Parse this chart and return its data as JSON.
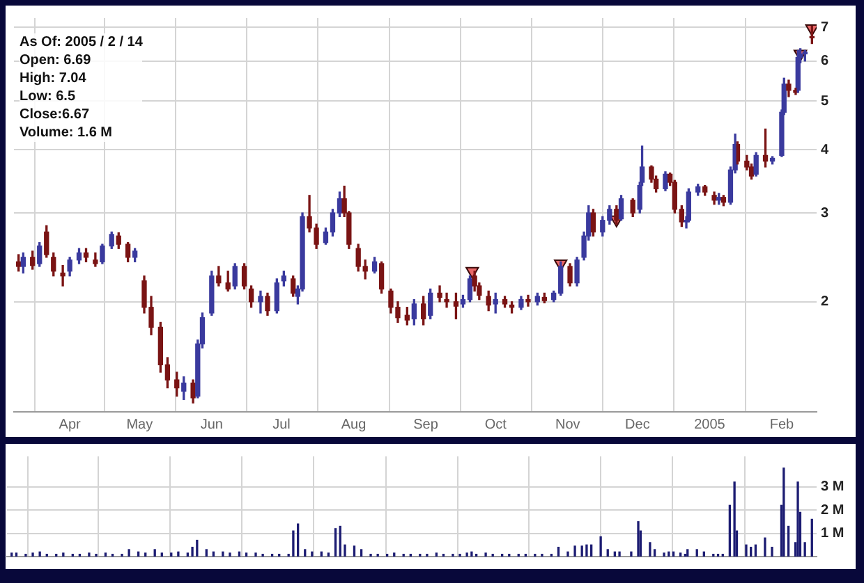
{
  "chart_data": [
    {
      "type": "candlestick",
      "log": true,
      "grid": true,
      "ylim": [
        1.21,
        7.3
      ],
      "yticks": [
        2,
        3,
        4,
        5,
        6,
        7
      ],
      "xlim": [
        "2004-03-08",
        "2005-02-16"
      ],
      "xticks": [
        {
          "value": "2004-04-01",
          "label": "Apr"
        },
        {
          "value": "2004-05-01",
          "label": "May"
        },
        {
          "value": "2004-06-01",
          "label": "Jun"
        },
        {
          "value": "2004-07-01",
          "label": "Jul"
        },
        {
          "value": "2004-08-01",
          "label": "Aug"
        },
        {
          "value": "2004-09-01",
          "label": "Sep"
        },
        {
          "value": "2004-10-01",
          "label": "Oct"
        },
        {
          "value": "2004-11-01",
          "label": "Nov"
        },
        {
          "value": "2004-12-01",
          "label": "Dec"
        },
        {
          "value": "2005-01-01",
          "label": "2005"
        },
        {
          "value": "2005-02-01",
          "label": "Feb"
        }
      ],
      "annotations": [
        "As Of: 2005 / 2 / 14",
        "Open: 6.69",
        "High: 7.04",
        "Low: 6.5",
        "Close:6.67",
        "Volume: 1.6 M"
      ],
      "x": [
        "2004-03-10",
        "2004-03-12",
        "2004-03-16",
        "2004-03-19",
        "2004-03-22",
        "2004-03-25",
        "2004-03-29",
        "2004-04-01",
        "2004-04-05",
        "2004-04-08",
        "2004-04-12",
        "2004-04-15",
        "2004-04-19",
        "2004-04-22",
        "2004-04-26",
        "2004-04-29",
        "2004-05-03",
        "2004-05-06",
        "2004-05-10",
        "2004-05-13",
        "2004-05-17",
        "2004-05-20",
        "2004-05-24",
        "2004-05-26",
        "2004-05-28",
        "2004-06-01",
        "2004-06-04",
        "2004-06-08",
        "2004-06-11",
        "2004-06-15",
        "2004-06-18",
        "2004-06-22",
        "2004-06-25",
        "2004-06-29",
        "2004-07-02",
        "2004-07-06",
        "2004-07-08",
        "2004-07-10",
        "2004-07-13",
        "2004-07-16",
        "2004-07-20",
        "2004-07-23",
        "2004-07-26",
        "2004-07-28",
        "2004-07-30",
        "2004-08-03",
        "2004-08-06",
        "2004-08-10",
        "2004-08-13",
        "2004-08-17",
        "2004-08-20",
        "2004-08-24",
        "2004-08-27",
        "2004-08-31",
        "2004-09-03",
        "2004-09-07",
        "2004-09-10",
        "2004-09-14",
        "2004-09-17",
        "2004-09-20",
        "2004-09-22",
        "2004-09-24",
        "2004-09-28",
        "2004-10-01",
        "2004-10-05",
        "2004-10-08",
        "2004-10-12",
        "2004-10-15",
        "2004-10-19",
        "2004-10-22",
        "2004-10-26",
        "2004-10-29",
        "2004-11-02",
        "2004-11-05",
        "2004-11-08",
        "2004-11-10",
        "2004-11-12",
        "2004-11-16",
        "2004-11-19",
        "2004-11-22",
        "2004-11-24",
        "2004-11-29",
        "2004-12-02",
        "2004-12-03",
        "2004-12-07",
        "2004-12-09",
        "2004-12-13",
        "2004-12-15",
        "2004-12-17",
        "2004-12-20",
        "2004-12-22",
        "2004-12-23",
        "2004-12-27",
        "2004-12-30",
        "2005-01-03",
        "2005-01-05",
        "2005-01-07",
        "2005-01-10",
        "2005-01-12",
        "2005-01-13",
        "2005-01-17",
        "2005-01-19",
        "2005-01-21",
        "2005-01-25",
        "2005-01-28",
        "2005-02-01",
        "2005-02-02",
        "2005-02-04",
        "2005-02-07",
        "2005-02-08",
        "2005-02-09",
        "2005-02-11",
        "2005-02-14"
      ],
      "ohlc": [
        [
          2.4,
          2.48,
          2.3,
          2.35
        ],
        [
          2.35,
          2.5,
          2.28,
          2.45
        ],
        [
          2.45,
          2.52,
          2.32,
          2.36
        ],
        [
          2.38,
          2.62,
          2.35,
          2.58
        ],
        [
          2.75,
          2.83,
          2.45,
          2.48
        ],
        [
          2.45,
          2.5,
          2.25,
          2.3
        ],
        [
          2.28,
          2.36,
          2.15,
          2.25
        ],
        [
          2.3,
          2.45,
          2.25,
          2.42
        ],
        [
          2.42,
          2.55,
          2.38,
          2.5
        ],
        [
          2.5,
          2.55,
          2.4,
          2.45
        ],
        [
          2.42,
          2.5,
          2.35,
          2.38
        ],
        [
          2.4,
          2.6,
          2.38,
          2.58
        ],
        [
          2.58,
          2.75,
          2.55,
          2.72
        ],
        [
          2.7,
          2.74,
          2.55,
          2.6
        ],
        [
          2.6,
          2.62,
          2.4,
          2.45
        ],
        [
          2.45,
          2.55,
          2.4,
          2.52
        ],
        [
          2.2,
          2.25,
          1.9,
          1.95
        ],
        [
          1.95,
          2.05,
          1.72,
          1.78
        ],
        [
          1.78,
          1.82,
          1.45,
          1.5
        ],
        [
          1.5,
          1.55,
          1.35,
          1.4
        ],
        [
          1.4,
          1.45,
          1.3,
          1.35
        ],
        [
          1.33,
          1.42,
          1.28,
          1.38
        ],
        [
          1.38,
          1.4,
          1.26,
          1.29
        ],
        [
          1.3,
          1.68,
          1.29,
          1.65
        ],
        [
          1.65,
          1.9,
          1.62,
          1.86
        ],
        [
          1.9,
          2.3,
          1.88,
          2.25
        ],
        [
          2.25,
          2.35,
          2.15,
          2.18
        ],
        [
          2.18,
          2.3,
          2.1,
          2.12
        ],
        [
          2.15,
          2.38,
          2.12,
          2.35
        ],
        [
          2.35,
          2.38,
          2.12,
          2.15
        ],
        [
          2.12,
          2.15,
          1.95,
          2.0
        ],
        [
          2.0,
          2.1,
          1.9,
          2.05
        ],
        [
          2.05,
          2.08,
          1.88,
          1.92
        ],
        [
          1.92,
          2.22,
          1.9,
          2.18
        ],
        [
          2.2,
          2.3,
          2.15,
          2.25
        ],
        [
          2.22,
          2.25,
          2.05,
          2.08
        ],
        [
          2.05,
          2.15,
          1.98,
          2.12
        ],
        [
          2.12,
          3.0,
          2.1,
          2.95
        ],
        [
          2.95,
          3.25,
          2.75,
          2.8
        ],
        [
          2.8,
          2.85,
          2.55,
          2.6
        ],
        [
          2.62,
          2.8,
          2.6,
          2.75
        ],
        [
          2.75,
          3.05,
          2.7,
          3.0
        ],
        [
          3.0,
          3.3,
          2.95,
          3.2
        ],
        [
          3.2,
          3.39,
          2.95,
          3.0
        ],
        [
          3.0,
          3.02,
          2.55,
          2.6
        ],
        [
          2.55,
          2.6,
          2.3,
          2.35
        ],
        [
          2.35,
          2.42,
          2.22,
          2.3
        ],
        [
          2.3,
          2.45,
          2.28,
          2.4
        ],
        [
          2.38,
          2.4,
          2.08,
          2.12
        ],
        [
          2.1,
          2.12,
          1.9,
          1.95
        ],
        [
          1.95,
          2.0,
          1.82,
          1.86
        ],
        [
          1.88,
          1.95,
          1.8,
          1.84
        ],
        [
          1.85,
          2.02,
          1.8,
          1.98
        ],
        [
          1.98,
          2.05,
          1.8,
          1.85
        ],
        [
          1.88,
          2.12,
          1.85,
          2.08
        ],
        [
          2.08,
          2.15,
          2.0,
          2.04
        ],
        [
          2.02,
          2.08,
          1.95,
          2.0
        ],
        [
          2.0,
          2.08,
          1.85,
          1.96
        ],
        [
          1.98,
          2.06,
          1.95,
          2.02
        ],
        [
          2.02,
          2.25,
          2.0,
          2.22
        ],
        [
          2.25,
          2.3,
          2.1,
          2.15
        ],
        [
          2.15,
          2.18,
          2.02,
          2.06
        ],
        [
          2.05,
          2.1,
          1.92,
          1.97
        ],
        [
          1.98,
          2.08,
          1.9,
          2.02
        ],
        [
          2.02,
          2.05,
          1.95,
          1.98
        ],
        [
          1.97,
          2.0,
          1.9,
          1.95
        ],
        [
          1.95,
          2.05,
          1.93,
          2.02
        ],
        [
          2.02,
          2.06,
          1.96,
          2.0
        ],
        [
          2.0,
          2.08,
          1.97,
          2.05
        ],
        [
          2.04,
          2.08,
          1.99,
          2.01
        ],
        [
          2.02,
          2.1,
          2.0,
          2.08
        ],
        [
          2.08,
          2.4,
          2.06,
          2.35
        ],
        [
          2.35,
          2.38,
          2.15,
          2.18
        ],
        [
          2.18,
          2.45,
          2.15,
          2.42
        ],
        [
          2.45,
          2.75,
          2.42,
          2.7
        ],
        [
          2.7,
          3.1,
          2.65,
          3.0
        ],
        [
          3.0,
          3.05,
          2.7,
          2.75
        ],
        [
          2.75,
          2.95,
          2.7,
          2.9
        ],
        [
          2.9,
          3.1,
          2.85,
          3.05
        ],
        [
          3.05,
          3.1,
          2.85,
          2.9
        ],
        [
          2.92,
          3.25,
          2.9,
          3.2
        ],
        [
          3.18,
          3.2,
          2.95,
          3.0
        ],
        [
          3.05,
          3.45,
          3.0,
          3.4
        ],
        [
          3.45,
          4.07,
          3.4,
          3.7
        ],
        [
          3.7,
          3.72,
          3.45,
          3.5
        ],
        [
          3.5,
          3.55,
          3.3,
          3.35
        ],
        [
          3.35,
          3.62,
          3.32,
          3.58
        ],
        [
          3.58,
          3.6,
          3.4,
          3.45
        ],
        [
          3.45,
          3.48,
          3.0,
          3.05
        ],
        [
          3.05,
          3.1,
          2.82,
          2.88
        ],
        [
          2.88,
          2.95,
          2.8,
          2.9
        ],
        [
          2.9,
          3.35,
          2.88,
          3.3
        ],
        [
          3.3,
          3.42,
          3.25,
          3.38
        ],
        [
          3.38,
          3.4,
          3.25,
          3.3
        ],
        [
          3.25,
          3.3,
          3.12,
          3.18
        ],
        [
          3.18,
          3.28,
          3.12,
          3.22
        ],
        [
          3.22,
          3.25,
          3.1,
          3.15
        ],
        [
          3.15,
          3.7,
          3.12,
          3.65
        ],
        [
          3.65,
          4.3,
          3.6,
          4.1
        ],
        [
          4.1,
          4.15,
          3.75,
          3.8
        ],
        [
          3.8,
          3.9,
          3.65,
          3.7
        ],
        [
          3.7,
          3.75,
          3.5,
          3.55
        ],
        [
          3.58,
          3.95,
          3.55,
          3.9
        ],
        [
          3.9,
          4.4,
          3.7,
          3.8
        ],
        [
          3.8,
          3.88,
          3.75,
          3.85
        ],
        [
          3.9,
          4.8,
          3.88,
          4.75
        ],
        [
          4.75,
          5.55,
          4.7,
          5.4
        ],
        [
          5.4,
          5.5,
          5.1,
          5.25
        ],
        [
          5.25,
          5.3,
          5.15,
          5.2
        ],
        [
          5.25,
          6.3,
          5.2,
          6.1
        ],
        [
          6.1,
          6.35,
          5.95,
          6.2
        ],
        [
          6.2,
          6.3,
          6.0,
          6.25
        ],
        [
          6.69,
          7.04,
          6.5,
          6.67
        ]
      ],
      "colors": [
        "#7a1414",
        "#3a3a9e",
        "#7a1414",
        "#3a3a9e",
        "#7a1414",
        "#7a1414",
        "#7a1414",
        "#3a3a9e",
        "#3a3a9e",
        "#7a1414",
        "#7a1414",
        "#3a3a9e",
        "#3a3a9e",
        "#7a1414",
        "#7a1414",
        "#3a3a9e",
        "#7a1414",
        "#7a1414",
        "#7a1414",
        "#7a1414",
        "#7a1414",
        "#3a3a9e",
        "#7a1414",
        "#3a3a9e",
        "#3a3a9e",
        "#3a3a9e",
        "#7a1414",
        "#7a1414",
        "#3a3a9e",
        "#7a1414",
        "#7a1414",
        "#3a3a9e",
        "#7a1414",
        "#3a3a9e",
        "#3a3a9e",
        "#7a1414",
        "#3a3a9e",
        "#3a3a9e",
        "#7a1414",
        "#7a1414",
        "#3a3a9e",
        "#3a3a9e",
        "#3a3a9e",
        "#7a1414",
        "#7a1414",
        "#7a1414",
        "#7a1414",
        "#3a3a9e",
        "#7a1414",
        "#7a1414",
        "#7a1414",
        "#7a1414",
        "#3a3a9e",
        "#7a1414",
        "#3a3a9e",
        "#7a1414",
        "#7a1414",
        "#7a1414",
        "#3a3a9e",
        "#3a3a9e",
        "#7a1414",
        "#7a1414",
        "#7a1414",
        "#3a3a9e",
        "#7a1414",
        "#7a1414",
        "#3a3a9e",
        "#7a1414",
        "#3a3a9e",
        "#7a1414",
        "#3a3a9e",
        "#3a3a9e",
        "#7a1414",
        "#3a3a9e",
        "#3a3a9e",
        "#3a3a9e",
        "#7a1414",
        "#3a3a9e",
        "#3a3a9e",
        "#7a1414",
        "#3a3a9e",
        "#7a1414",
        "#3a3a9e",
        "#3a3a9e",
        "#7a1414",
        "#7a1414",
        "#3a3a9e",
        "#7a1414",
        "#7a1414",
        "#7a1414",
        "#3a3a9e",
        "#3a3a9e",
        "#3a3a9e",
        "#7a1414",
        "#7a1414",
        "#3a3a9e",
        "#7a1414",
        "#3a3a9e",
        "#3a3a9e",
        "#7a1414",
        "#7a1414",
        "#7a1414",
        "#3a3a9e",
        "#7a1414",
        "#3a3a9e",
        "#3a3a9e",
        "#3a3a9e",
        "#7a1414",
        "#7a1414",
        "#3a3a9e",
        "#3a3a9e",
        "#3a3a9e",
        "#7a1414"
      ],
      "series": [
        {
          "type": "scatter",
          "marker": "triangle",
          "color": "#e86868",
          "x": [
            "2004-09-21",
            "2004-10-29",
            "2004-11-22",
            "2005-02-09",
            "2005-02-14"
          ],
          "values": [
            2.3,
            2.38,
            2.91,
            6.2,
            6.96
          ]
        }
      ]
    },
    {
      "type": "bar",
      "grid": true,
      "tick_labels": "y",
      "color": "#1c1c72",
      "ylim": [
        0,
        4.3
      ],
      "yticks": [
        {
          "value": 1,
          "label": "1 M"
        },
        {
          "value": 2,
          "label": "2 M"
        },
        {
          "value": 3,
          "label": "3 M"
        }
      ],
      "xlim": [
        "2004-03-08",
        "2005-02-16"
      ],
      "xticks": [
        {
          "value": "2004-04-01",
          "label": null
        },
        {
          "value": "2004-05-01",
          "label": null
        },
        {
          "value": "2004-06-01",
          "label": null
        },
        {
          "value": "2004-07-01",
          "label": null
        },
        {
          "value": "2004-08-01",
          "label": null
        },
        {
          "value": "2004-09-01",
          "label": null
        },
        {
          "value": "2004-10-01",
          "label": null
        },
        {
          "value": "2004-11-01",
          "label": null
        },
        {
          "value": "2004-12-01",
          "label": null
        },
        {
          "value": "2005-01-01",
          "label": null
        },
        {
          "value": "2005-02-01",
          "label": null
        }
      ],
      "x": [
        "2004-03-10",
        "2004-03-12",
        "2004-03-16",
        "2004-03-19",
        "2004-03-22",
        "2004-03-25",
        "2004-03-29",
        "2004-04-01",
        "2004-04-05",
        "2004-04-08",
        "2004-04-12",
        "2004-04-15",
        "2004-04-19",
        "2004-04-22",
        "2004-04-26",
        "2004-04-29",
        "2004-05-03",
        "2004-05-06",
        "2004-05-10",
        "2004-05-13",
        "2004-05-17",
        "2004-05-20",
        "2004-05-24",
        "2004-05-26",
        "2004-05-28",
        "2004-06-01",
        "2004-06-04",
        "2004-06-08",
        "2004-06-11",
        "2004-06-15",
        "2004-06-18",
        "2004-06-22",
        "2004-06-25",
        "2004-06-29",
        "2004-07-02",
        "2004-07-06",
        "2004-07-08",
        "2004-07-10",
        "2004-07-13",
        "2004-07-16",
        "2004-07-20",
        "2004-07-23",
        "2004-07-26",
        "2004-07-28",
        "2004-07-30",
        "2004-08-03",
        "2004-08-06",
        "2004-08-10",
        "2004-08-13",
        "2004-08-17",
        "2004-08-20",
        "2004-08-24",
        "2004-08-27",
        "2004-08-31",
        "2004-09-03",
        "2004-09-07",
        "2004-09-10",
        "2004-09-14",
        "2004-09-17",
        "2004-09-20",
        "2004-09-22",
        "2004-09-24",
        "2004-09-28",
        "2004-10-01",
        "2004-10-05",
        "2004-10-08",
        "2004-10-12",
        "2004-10-15",
        "2004-10-19",
        "2004-10-22",
        "2004-10-26",
        "2004-10-29",
        "2004-11-02",
        "2004-11-05",
        "2004-11-08",
        "2004-11-10",
        "2004-11-12",
        "2004-11-16",
        "2004-11-19",
        "2004-11-22",
        "2004-11-24",
        "2004-11-29",
        "2004-12-02",
        "2004-12-03",
        "2004-12-07",
        "2004-12-09",
        "2004-12-13",
        "2004-12-15",
        "2004-12-17",
        "2004-12-20",
        "2004-12-22",
        "2004-12-23",
        "2004-12-27",
        "2004-12-30",
        "2005-01-03",
        "2005-01-05",
        "2005-01-07",
        "2005-01-10",
        "2005-01-12",
        "2005-01-13",
        "2005-01-17",
        "2005-01-19",
        "2005-01-21",
        "2005-01-25",
        "2005-01-28",
        "2005-02-01",
        "2005-02-02",
        "2005-02-04",
        "2005-02-07",
        "2005-02-08",
        "2005-02-09",
        "2005-02-11",
        "2005-02-14"
      ],
      "values": [
        0.15,
        0.15,
        0.1,
        0.15,
        0.2,
        0.1,
        0.1,
        0.15,
        0.1,
        0.1,
        0.15,
        0.1,
        0.15,
        0.1,
        0.1,
        0.3,
        0.2,
        0.15,
        0.3,
        0.15,
        0.15,
        0.2,
        0.15,
        0.4,
        0.7,
        0.3,
        0.2,
        0.2,
        0.15,
        0.2,
        0.15,
        0.15,
        0.1,
        0.1,
        0.1,
        0.1,
        1.1,
        1.4,
        0.3,
        0.2,
        0.2,
        0.15,
        1.2,
        1.3,
        0.5,
        0.45,
        0.3,
        0.1,
        0.1,
        0.1,
        0.15,
        0.1,
        0.1,
        0.1,
        0.1,
        0.15,
        0.1,
        0.1,
        0.1,
        0.15,
        0.2,
        0.1,
        0.15,
        0.1,
        0.1,
        0.1,
        0.1,
        0.1,
        0.1,
        0.1,
        0.1,
        0.4,
        0.2,
        0.45,
        0.45,
        0.5,
        0.5,
        0.85,
        0.3,
        0.2,
        0.2,
        0.2,
        1.5,
        1.1,
        0.6,
        0.3,
        0.15,
        0.2,
        0.2,
        0.15,
        0.1,
        0.3,
        0.3,
        0.2,
        0.1,
        0.1,
        0.1,
        2.2,
        3.2,
        1.1,
        0.5,
        0.4,
        0.5,
        0.8,
        0.4,
        2.2,
        3.8,
        1.3,
        0.6,
        3.2,
        1.9,
        0.6,
        1.6
      ]
    }
  ]
}
